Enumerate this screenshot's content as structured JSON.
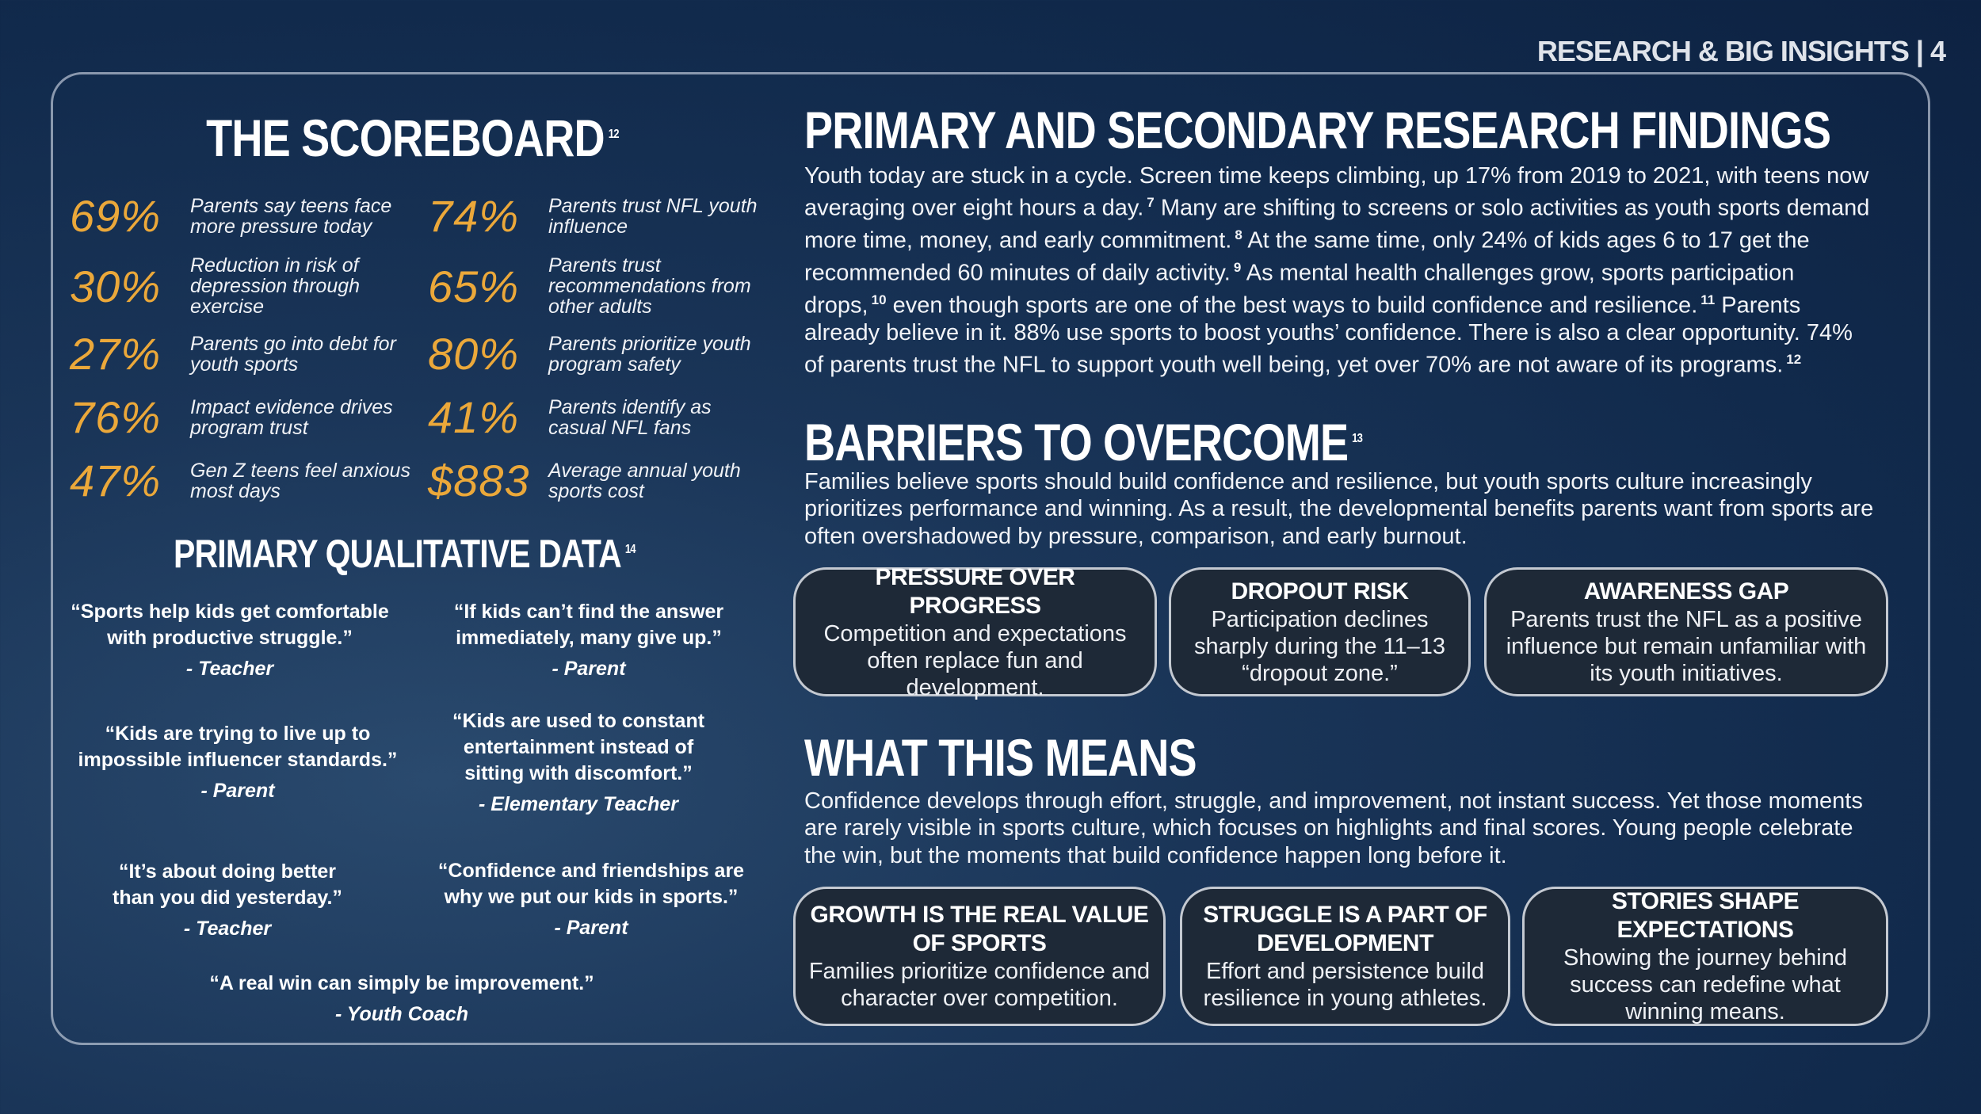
{
  "header": {
    "section": "RESEARCH & BIG INSIGHTS",
    "page": "4"
  },
  "scoreboard": {
    "title": "THE SCOREBOARD",
    "note": "12",
    "stats": [
      {
        "figure": "69%",
        "label": "Parents say teens face more pressure today"
      },
      {
        "figure": "30%",
        "label": "Reduction in risk of depression through exercise"
      },
      {
        "figure": "27%",
        "label": "Parents go into debt for youth sports"
      },
      {
        "figure": "76%",
        "label": "Impact evidence drives program trust"
      },
      {
        "figure": "47%",
        "label": "Gen Z teens feel anxious most days"
      },
      {
        "figure": "74%",
        "label": "Parents trust NFL youth influence"
      },
      {
        "figure": "65%",
        "label": "Parents trust recommendations from other adults"
      },
      {
        "figure": "80%",
        "label": "Parents prioritize youth program safety"
      },
      {
        "figure": "41%",
        "label": "Parents identify as casual NFL fans"
      },
      {
        "figure": "$883",
        "label": "Average annual youth sports cost"
      }
    ]
  },
  "qualitative": {
    "title": "PRIMARY QUALITATIVE DATA",
    "note": "14",
    "quotes": [
      {
        "text": "“Sports help kids get comfortable with productive struggle.”",
        "source": "- Teacher"
      },
      {
        "text": "“If kids can’t find the answer immediately, many give up.”",
        "source": "- Parent"
      },
      {
        "text": "“Kids are trying to live up to impossible influencer standards.”",
        "source": "- Parent"
      },
      {
        "text": "“Kids are used to constant entertainment instead of sitting with discomfort.”",
        "source": "- Elementary Teacher"
      },
      {
        "text": "“It’s about doing better than you did yesterday.”",
        "source": "- Teacher"
      },
      {
        "text": "“Confidence and friendships are why we put our kids in sports.”",
        "source": "- Parent"
      },
      {
        "text": "“A real win can simply be improvement.”",
        "source": "- Youth Coach"
      }
    ]
  },
  "findings": {
    "title": "PRIMARY AND SECONDARY RESEARCH FINDINGS",
    "body": [
      {
        "text": "Youth today are stuck in a cycle. Screen time keeps climbing, up 17% from 2019 to 2021, with teens now averaging over eight hours a day.",
        "note": "7"
      },
      {
        "text": "Many are shifting to screens or solo activities as youth sports demand more time, money, and early commitment.",
        "note": "8"
      },
      {
        "text": "At the same time, only 24% of kids ages 6 to 17 get the recommended 60 minutes of daily activity.",
        "note": "9"
      },
      {
        "text": "As mental health challenges grow, sports participation drops,",
        "note": "10"
      },
      {
        "text": "even though sports are one of the best ways to build confidence and resilience.",
        "note": "11"
      },
      {
        "text": "Parents already believe in it. 88% use sports to boost youths’ confidence. There is also a clear opportunity. 74% of parents trust the NFL to support youth well being, yet over 70% are not aware of its programs.",
        "note": "12"
      }
    ]
  },
  "barriers": {
    "title": "BARRIERS TO OVERCOME",
    "note": "13",
    "body": "Families believe sports should build confidence and resilience, but youth sports culture increasingly prioritizes performance and winning. As a result, the developmental benefits parents want from sports are often overshadowed by pressure, comparison, and early burnout.",
    "cards": [
      {
        "title": "PRESSURE OVER PROGRESS",
        "text": "Competition and expectations often replace fun and development."
      },
      {
        "title": "DROPOUT RISK",
        "text": "Participation declines sharply during the 11–13 “dropout zone.”"
      },
      {
        "title": "AWARENESS GAP",
        "text": "Parents trust the NFL as a positive influence but remain unfamiliar with its youth initiatives."
      }
    ]
  },
  "means": {
    "title": "WHAT THIS MEANS",
    "body": "Confidence develops through effort, struggle, and improvement, not instant success. Yet those moments are rarely visible in sports culture, which focuses on highlights and final scores. Young people celebrate the win, but the moments that build confidence happen long before it.",
    "cards": [
      {
        "title": "GROWTH IS THE REAL VALUE OF SPORTS",
        "text": "Families prioritize confidence and character over competition."
      },
      {
        "title": "STRUGGLE IS A PART OF DEVELOPMENT",
        "text": "Effort and persistence build resilience in young athletes."
      },
      {
        "title": "STORIES SHAPE EXPECTATIONS",
        "text": "Showing the journey behind success can redefine what winning means."
      }
    ]
  }
}
